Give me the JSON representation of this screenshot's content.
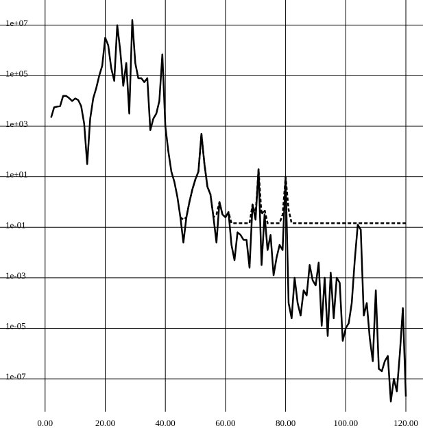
{
  "chart_data": {
    "type": "line",
    "log_y": true,
    "grid": true,
    "xlim": [
      -15,
      125.7
    ],
    "ylim": [
      5e-09,
      100000000.0
    ],
    "xticks": [
      {
        "value": 0,
        "label": "0.00"
      },
      {
        "value": 20,
        "label": "20.00"
      },
      {
        "value": 40,
        "label": "40.00"
      },
      {
        "value": 60,
        "label": "60.00"
      },
      {
        "value": 80,
        "label": "80.00"
      },
      {
        "value": 100,
        "label": "100.00"
      },
      {
        "value": 120,
        "label": "120.00"
      }
    ],
    "yticks": [
      {
        "value": 10000000.0,
        "label": "1e+07"
      },
      {
        "value": 100000.0,
        "label": "1e+05"
      },
      {
        "value": 1000.0,
        "label": "1e+03"
      },
      {
        "value": 10,
        "label": "1e+01"
      },
      {
        "value": 0.1,
        "label": "1e-01"
      },
      {
        "value": 0.001,
        "label": "1e-03"
      },
      {
        "value": 1e-05,
        "label": "1e-05"
      },
      {
        "value": 1e-07,
        "label": "1e-07"
      }
    ],
    "x": [
      2,
      3,
      4,
      5,
      6,
      7,
      8,
      9,
      10,
      11,
      12,
      13,
      14,
      15,
      16,
      17,
      18,
      19,
      20,
      21,
      22,
      23,
      24,
      25,
      26,
      27,
      28,
      29,
      30,
      31,
      32,
      33,
      34,
      35,
      36,
      37,
      38,
      39,
      40,
      41,
      42,
      43,
      44,
      45,
      46,
      47,
      48,
      49,
      50,
      51,
      52,
      53,
      54,
      55,
      56,
      57,
      58,
      59,
      60,
      61,
      62,
      63,
      64,
      65,
      66,
      67,
      68,
      69,
      70,
      71,
      72,
      73,
      74,
      75,
      76,
      77,
      78,
      79,
      80,
      81,
      82,
      83,
      84,
      85,
      86,
      87,
      88,
      89,
      90,
      91,
      92,
      93,
      94,
      95,
      96,
      97,
      98,
      99,
      100,
      101,
      102,
      103,
      104,
      105,
      106,
      107,
      108,
      109,
      110,
      111,
      112,
      113,
      114,
      115,
      116,
      117,
      118,
      119,
      120
    ],
    "series": [
      {
        "color": "#000000",
        "dash": false,
        "values": [
          2200.0,
          5600.0,
          6000.0,
          6300.0,
          16000.0,
          16000.0,
          13000.0,
          10000.0,
          12600.0,
          11000.0,
          6300.0,
          1260.0,
          32,
          2000.0,
          12600.0,
          32000.0,
          100000.0,
          250000.0,
          3200000.0,
          1600000.0,
          200000.0,
          63000.0,
          10000000.0,
          1000000.0,
          40000.0,
          320000.0,
          3200.0,
          16000000.0,
          320000.0,
          80000.0,
          80000.0,
          56000.0,
          80000.0,
          700,
          2000.0,
          3200.0,
          10000.0,
          700000.0,
          1000.0,
          100,
          16,
          6.3,
          1.6,
          0.25,
          0.025,
          0.25,
          1,
          3.2,
          8,
          16,
          500,
          32,
          4,
          2,
          0.25,
          0.025,
          1,
          0.32,
          0.25,
          0.4,
          0.02,
          0.005,
          0.063,
          0.05,
          0.032,
          0.032,
          0.0025,
          0.8,
          0.2,
          20,
          0.0032,
          0.32,
          0.0126,
          0.05,
          0.00126,
          0.0063,
          0.02,
          0.0126,
          10,
          0.0001,
          2.5e-05,
          0.001,
          0.0001,
          3.2e-05,
          0.00032,
          0.0002,
          0.0032,
          0.0008,
          0.0005,
          0.004,
          1.26e-05,
          0.001,
          5e-06,
          0.0016,
          2.5e-05,
          0.001,
          0.00063,
          3.2e-06,
          1e-05,
          1.6e-05,
          0.0001,
          0.005,
          0.126,
          0.08,
          3.2e-05,
          0.0001,
          4e-06,
          5e-07,
          0.00032,
          2.5e-07,
          2e-07,
          5e-07,
          8e-07,
          1.26e-08,
          1e-07,
          3.2e-08,
          1e-06,
          6.3e-05,
          2e-08
        ]
      },
      {
        "color": "#000000",
        "dash": true,
        "values": [
          null,
          null,
          null,
          null,
          null,
          null,
          null,
          null,
          null,
          null,
          null,
          null,
          null,
          null,
          null,
          null,
          null,
          null,
          null,
          null,
          null,
          null,
          null,
          null,
          null,
          null,
          null,
          null,
          null,
          null,
          null,
          null,
          null,
          null,
          null,
          null,
          null,
          null,
          null,
          null,
          null,
          null,
          null,
          0.25,
          0.2,
          0.25,
          1,
          3.2,
          8,
          16,
          500,
          32,
          4,
          2,
          0.25,
          0.32,
          1,
          0.32,
          0.25,
          0.4,
          0.145,
          0.145,
          0.145,
          0.145,
          0.145,
          0.145,
          0.145,
          0.8,
          0.32,
          20,
          0.32,
          0.5,
          0.145,
          0.145,
          0.145,
          0.145,
          0.145,
          0.32,
          10,
          0.5,
          0.145,
          0.145,
          0.145,
          0.145,
          0.145,
          0.145,
          0.145,
          0.145,
          0.145,
          0.145,
          0.145,
          0.145,
          0.145,
          0.145,
          0.145,
          0.145,
          0.145,
          0.145,
          0.145,
          0.145,
          0.145,
          0.145,
          0.145,
          0.145,
          0.145,
          0.145,
          0.145,
          0.145,
          0.145,
          0.145,
          0.145,
          0.145,
          0.145,
          0.145,
          0.145,
          0.145,
          0.145,
          0.145,
          0.145
        ]
      }
    ]
  }
}
